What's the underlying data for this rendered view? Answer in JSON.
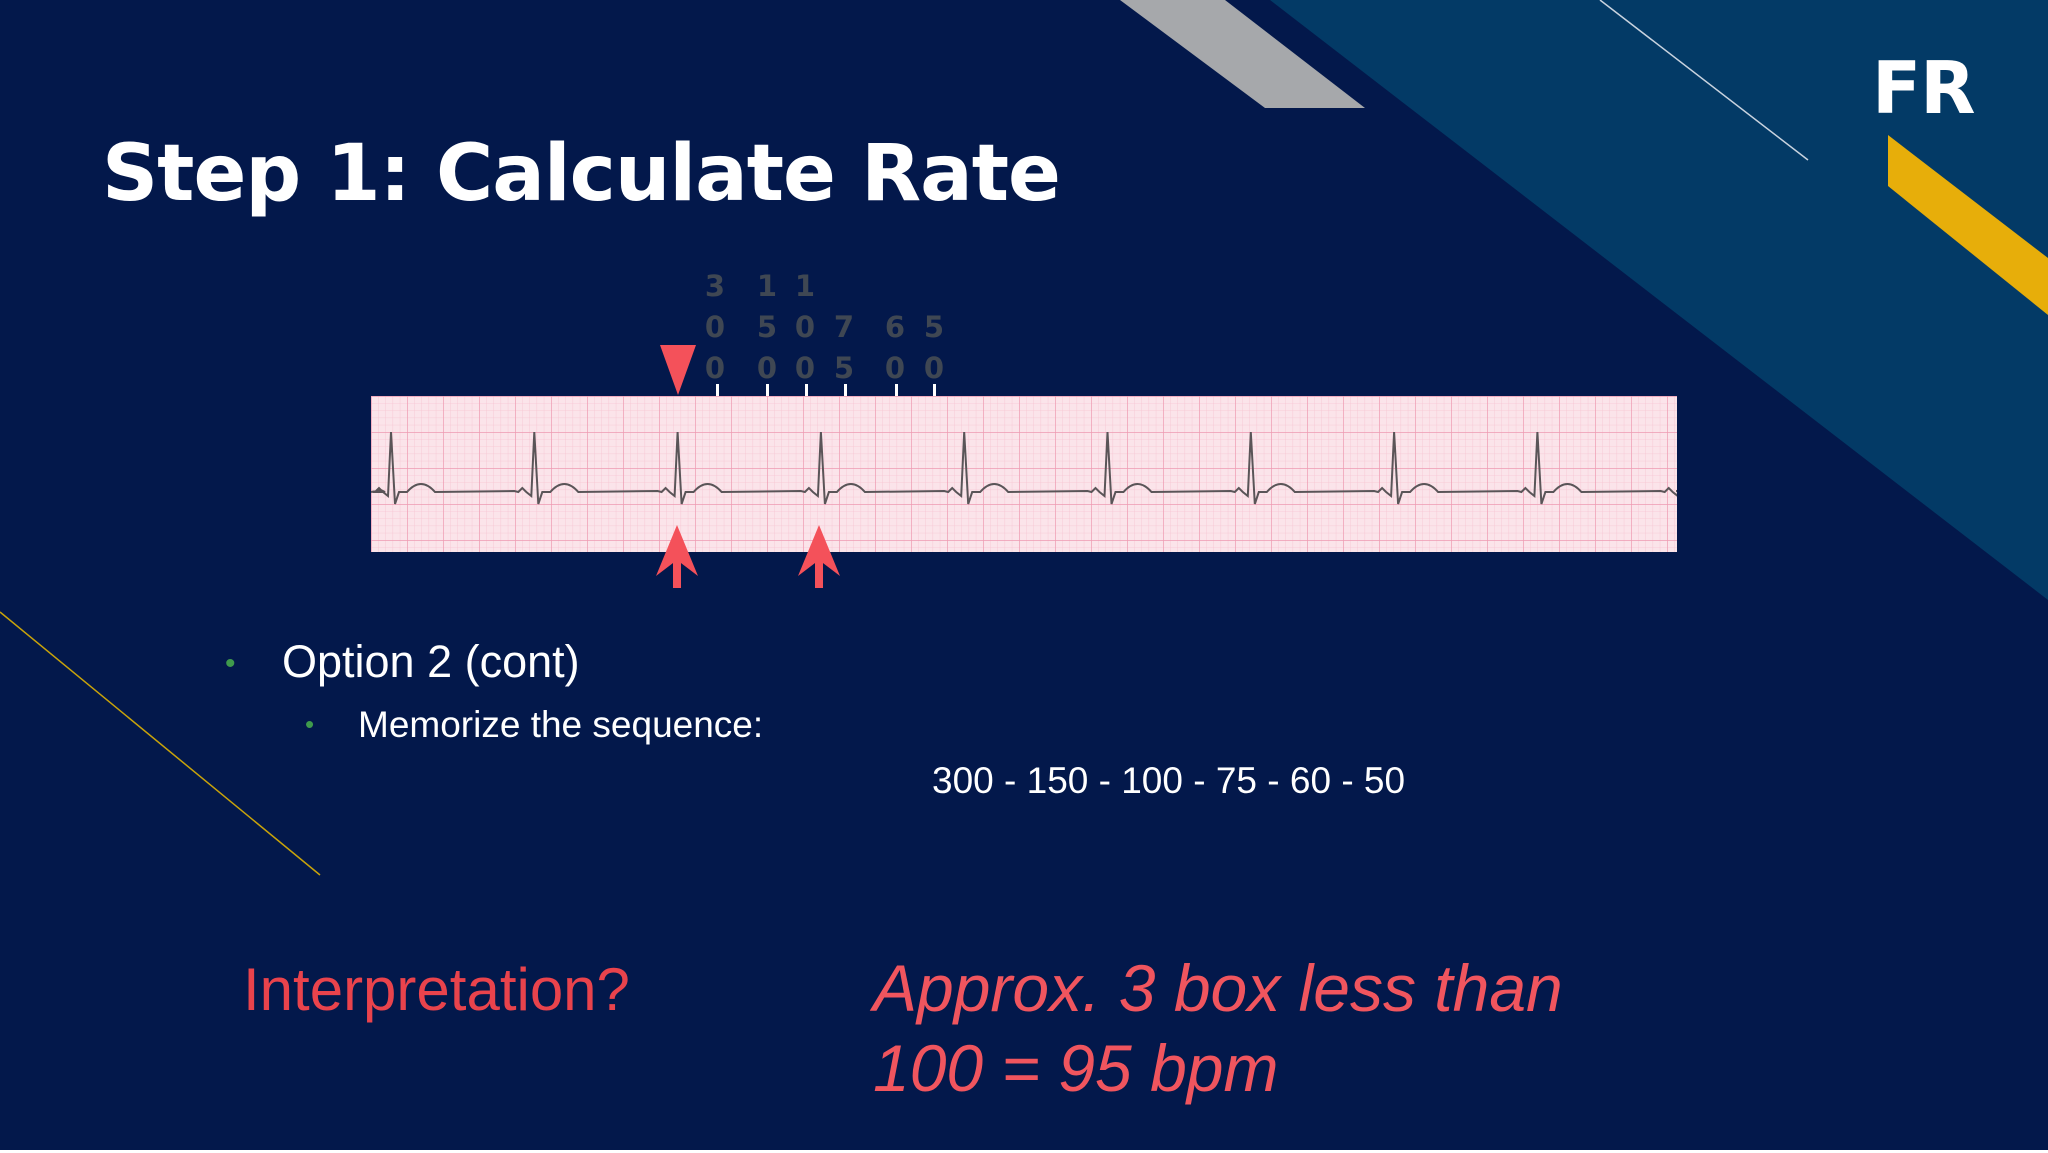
{
  "slide": {
    "logo": "FR",
    "title": "Step 1: Calculate Rate",
    "scale_labels": [
      "3\n0\n0",
      "1\n5\n0",
      "1\n0\n0",
      "7\n5",
      "6\n0",
      "5\n0"
    ],
    "bullet_1": "Option 2 (cont)",
    "bullet_2": "Memorize the sequence:",
    "sequence": "300 - 150 - 100 - 75 - 60 - 50",
    "question": "Interpretation?",
    "answer_line_1": "Approx. 3 box less than",
    "answer_line_2": "100 = 95 bpm"
  },
  "colors": {
    "background": "#03184b",
    "teal_band": "#033a66",
    "gray_band": "#a6a8ab",
    "gold": "#e7ae0a",
    "marker_red": "#f4515a",
    "answer_red": "#f0555e",
    "ecg_paper": "#fbe4ea",
    "ecg_grid": "#f2a9bd",
    "ecg_trace": "#5a5558",
    "bullet_green": "#3f9a4c"
  },
  "ecg": {
    "rhythm": "regular sinus",
    "beats_shown": 10,
    "marked_beats": [
      3,
      4
    ]
  }
}
